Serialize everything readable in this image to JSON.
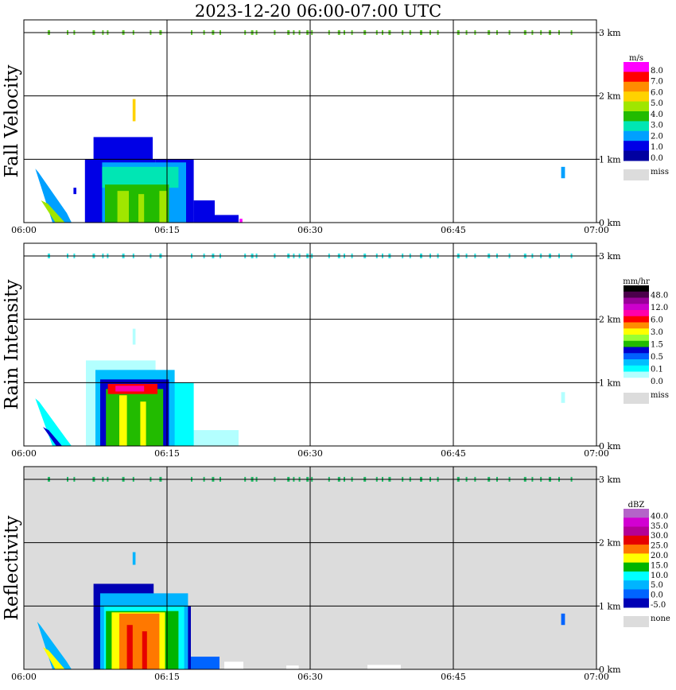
{
  "title": "2023-12-20   06:00-07:00 UTC",
  "time_ticks": [
    "06:00",
    "06:15",
    "06:30",
    "06:45",
    "07:00"
  ],
  "height_ticks": [
    "0 km",
    "1 km",
    "2 km",
    "3 km"
  ],
  "colors": {
    "missing": "#dcdcdc",
    "grid": "#000000",
    "frame": "#000000"
  },
  "chart_data": [
    {
      "type": "heatmap",
      "title": "Fall Velocity",
      "units": "m/s",
      "x_range": [
        "06:00",
        "07:00"
      ],
      "y_range_km": [
        0,
        3.2
      ],
      "background": "#ffffff",
      "legend": {
        "labels": [
          "8.0",
          "7.0",
          "6.0",
          "5.0",
          "4.0",
          "3.0",
          "2.0",
          "1.0",
          "0.0"
        ],
        "colors": [
          "#ff00ff",
          "#ff0000",
          "#ff8c00",
          "#ffd200",
          "#a0e600",
          "#22bb00",
          "#00e6b4",
          "#00a0ff",
          "#0000e6",
          "#0000a0"
        ],
        "miss_label": "miss"
      },
      "echoes": [
        {
          "shape": "rect",
          "t0": 6.4,
          "t1": 13.8,
          "h0": 0.0,
          "h1": 1.0,
          "color": "#0000e6"
        },
        {
          "shape": "rect",
          "t0": 7.3,
          "t1": 13.5,
          "h0": 1.0,
          "h1": 1.35,
          "color": "#0000e6"
        },
        {
          "shape": "rect",
          "t0": 13.8,
          "t1": 17.8,
          "h0": 0.0,
          "h1": 1.0,
          "color": "#0000e6"
        },
        {
          "shape": "rect",
          "t0": 17.8,
          "t1": 20.0,
          "h0": 0.0,
          "h1": 0.35,
          "color": "#0000e6"
        },
        {
          "shape": "rect",
          "t0": 20.0,
          "t1": 22.5,
          "h0": 0.0,
          "h1": 0.12,
          "color": "#0000e6"
        },
        {
          "shape": "rect",
          "t0": 8.2,
          "t1": 17.0,
          "h0": 0.0,
          "h1": 0.95,
          "color": "#00a0ff"
        },
        {
          "shape": "rect",
          "t0": 8.2,
          "t1": 16.2,
          "h0": 0.55,
          "h1": 0.88,
          "color": "#00e6b4"
        },
        {
          "shape": "rect",
          "t0": 8.5,
          "t1": 15.2,
          "h0": 0.0,
          "h1": 0.6,
          "color": "#22bb00"
        },
        {
          "shape": "rect",
          "t0": 9.8,
          "t1": 11.0,
          "h0": 0.0,
          "h1": 0.5,
          "color": "#a0e600"
        },
        {
          "shape": "rect",
          "t0": 12.0,
          "t1": 12.6,
          "h0": 0.0,
          "h1": 0.45,
          "color": "#a0e600"
        },
        {
          "shape": "rect",
          "t0": 14.2,
          "t1": 15.0,
          "h0": 0.0,
          "h1": 0.5,
          "color": "#a0e600"
        },
        {
          "shape": "rect",
          "t0": 22.6,
          "t1": 22.9,
          "h0": 0.0,
          "h1": 0.06,
          "color": "#ff00ff"
        },
        {
          "shape": "poly",
          "points": [
            [
              1.2,
              0.85
            ],
            [
              1.5,
              0.8
            ],
            [
              4.5,
              0.15
            ],
            [
              5.0,
              0.0
            ],
            [
              3.0,
              0.0
            ]
          ],
          "color": "#00a0ff"
        },
        {
          "shape": "poly",
          "points": [
            [
              1.8,
              0.35
            ],
            [
              2.5,
              0.3
            ],
            [
              4.3,
              0.0
            ],
            [
              3.3,
              0.0
            ]
          ],
          "color": "#a0e600"
        },
        {
          "shape": "rect",
          "t0": 11.4,
          "t1": 11.7,
          "h0": 1.6,
          "h1": 1.95,
          "color": "#ffd200"
        },
        {
          "shape": "rect",
          "t0": 56.3,
          "t1": 56.7,
          "h0": 0.7,
          "h1": 0.88,
          "color": "#00a0ff"
        },
        {
          "shape": "rect",
          "t0": 5.2,
          "t1": 5.5,
          "h0": 0.45,
          "h1": 0.55,
          "color": "#0000e6"
        }
      ],
      "clutter_height_km": 3.0,
      "clutter_color": "#66cc33"
    },
    {
      "type": "heatmap",
      "title": "Rain Intensity",
      "units": "mm/hr",
      "x_range": [
        "06:00",
        "07:00"
      ],
      "y_range_km": [
        0,
        3.2
      ],
      "background": "#ffffff",
      "legend": {
        "labels": [
          "48.0",
          "12.0",
          "6.0",
          "3.0",
          "1.5",
          "0.5",
          "0.1",
          "0.0"
        ],
        "colors": [
          "#000000",
          "#4b004b",
          "#990099",
          "#cc00cc",
          "#ff00aa",
          "#ff0000",
          "#ff8c00",
          "#ffff00",
          "#99ff33",
          "#22bb00",
          "#0000cc",
          "#0060ff",
          "#00bfff",
          "#00ffff",
          "#b3ffff",
          "#ffffff"
        ],
        "miss_label": "miss"
      },
      "echoes": [
        {
          "shape": "rect",
          "t0": 6.5,
          "t1": 13.8,
          "h0": 0.0,
          "h1": 1.35,
          "color": "#b3ffff"
        },
        {
          "shape": "rect",
          "t0": 13.8,
          "t1": 22.5,
          "h0": 0.0,
          "h1": 0.25,
          "color": "#b3ffff"
        },
        {
          "shape": "rect",
          "t0": 13.8,
          "t1": 17.8,
          "h0": 0.0,
          "h1": 1.0,
          "color": "#00ffff"
        },
        {
          "shape": "rect",
          "t0": 7.5,
          "t1": 15.8,
          "h0": 0.0,
          "h1": 1.2,
          "color": "#00bfff"
        },
        {
          "shape": "rect",
          "t0": 8.0,
          "t1": 15.2,
          "h0": 0.0,
          "h1": 1.05,
          "color": "#0000cc"
        },
        {
          "shape": "rect",
          "t0": 8.6,
          "t1": 14.6,
          "h0": 0.0,
          "h1": 0.9,
          "color": "#22bb00"
        },
        {
          "shape": "rect",
          "t0": 10.0,
          "t1": 10.8,
          "h0": 0.0,
          "h1": 0.8,
          "color": "#ffff00"
        },
        {
          "shape": "rect",
          "t0": 12.2,
          "t1": 12.8,
          "h0": 0.0,
          "h1": 0.7,
          "color": "#ffff00"
        },
        {
          "shape": "rect",
          "t0": 8.8,
          "t1": 14.0,
          "h0": 0.82,
          "h1": 0.98,
          "color": "#ff0000"
        },
        {
          "shape": "rect",
          "t0": 9.6,
          "t1": 12.6,
          "h0": 0.86,
          "h1": 0.95,
          "color": "#ff00aa"
        },
        {
          "shape": "poly",
          "points": [
            [
              1.2,
              0.75
            ],
            [
              1.6,
              0.7
            ],
            [
              4.5,
              0.1
            ],
            [
              5.0,
              0.0
            ],
            [
              3.0,
              0.0
            ]
          ],
          "color": "#00ffff"
        },
        {
          "shape": "poly",
          "points": [
            [
              2.0,
              0.3
            ],
            [
              2.6,
              0.25
            ],
            [
              4.0,
              0.0
            ],
            [
              3.4,
              0.0
            ]
          ],
          "color": "#0000cc"
        },
        {
          "shape": "rect",
          "t0": 11.4,
          "t1": 11.7,
          "h0": 1.6,
          "h1": 1.85,
          "color": "#b3ffff"
        },
        {
          "shape": "rect",
          "t0": 56.3,
          "t1": 56.7,
          "h0": 0.68,
          "h1": 0.85,
          "color": "#b3ffff"
        }
      ],
      "clutter_height_km": 3.0,
      "clutter_color": "#33e6e6"
    },
    {
      "type": "heatmap",
      "title": "Reflectivity",
      "units": "dBZ",
      "x_range": [
        "06:00",
        "07:00"
      ],
      "y_range_km": [
        0,
        3.2
      ],
      "background": "#dcdcdc",
      "legend": {
        "labels": [
          "40.0",
          "35.0",
          "30.0",
          "25.0",
          "20.0",
          "15.0",
          "10.0",
          "5.0",
          "0.0",
          "-5.0"
        ],
        "colors": [
          "#b464c8",
          "#d200d2",
          "#b40096",
          "#e60000",
          "#ff7800",
          "#ffff00",
          "#00b400",
          "#00ffff",
          "#00b4ff",
          "#0064ff",
          "#0000b4"
        ],
        "miss_label": "none"
      },
      "echoes": [
        {
          "shape": "rect",
          "t0": 21.0,
          "t1": 23.0,
          "h0": 0.0,
          "h1": 0.12,
          "color": "#ffffff"
        },
        {
          "shape": "rect",
          "t0": 27.5,
          "t1": 28.8,
          "h0": 0.0,
          "h1": 0.06,
          "color": "#ffffff"
        },
        {
          "shape": "rect",
          "t0": 36.0,
          "t1": 39.5,
          "h0": 0.0,
          "h1": 0.07,
          "color": "#ffffff"
        },
        {
          "shape": "rect",
          "t0": 7.3,
          "t1": 13.6,
          "h0": 0.0,
          "h1": 1.35,
          "color": "#0000b4"
        },
        {
          "shape": "rect",
          "t0": 13.6,
          "t1": 17.5,
          "h0": 0.0,
          "h1": 1.0,
          "color": "#0000b4"
        },
        {
          "shape": "rect",
          "t0": 17.5,
          "t1": 20.5,
          "h0": 0.0,
          "h1": 0.2,
          "color": "#0064ff"
        },
        {
          "shape": "rect",
          "t0": 8.0,
          "t1": 17.2,
          "h0": 0.0,
          "h1": 1.2,
          "color": "#00b4ff"
        },
        {
          "shape": "rect",
          "t0": 8.4,
          "t1": 16.8,
          "h0": 0.0,
          "h1": 1.0,
          "color": "#00ffff"
        },
        {
          "shape": "rect",
          "t0": 8.6,
          "t1": 16.2,
          "h0": 0.0,
          "h1": 0.92,
          "color": "#00b400"
        },
        {
          "shape": "rect",
          "t0": 9.2,
          "t1": 14.8,
          "h0": 0.0,
          "h1": 0.9,
          "color": "#ffff00"
        },
        {
          "shape": "rect",
          "t0": 10.0,
          "t1": 14.2,
          "h0": 0.0,
          "h1": 0.88,
          "color": "#ff7800"
        },
        {
          "shape": "rect",
          "t0": 10.8,
          "t1": 11.4,
          "h0": 0.0,
          "h1": 0.7,
          "color": "#e60000"
        },
        {
          "shape": "rect",
          "t0": 12.4,
          "t1": 12.9,
          "h0": 0.0,
          "h1": 0.6,
          "color": "#e60000"
        },
        {
          "shape": "poly",
          "points": [
            [
              1.4,
              0.75
            ],
            [
              1.7,
              0.7
            ],
            [
              4.5,
              0.12
            ],
            [
              5.0,
              0.0
            ],
            [
              3.0,
              0.0
            ]
          ],
          "color": "#00b4ff"
        },
        {
          "shape": "poly",
          "points": [
            [
              2.0,
              0.35
            ],
            [
              2.6,
              0.3
            ],
            [
              4.3,
              0.0
            ],
            [
              3.3,
              0.0
            ]
          ],
          "color": "#ffff00"
        },
        {
          "shape": "rect",
          "t0": 11.4,
          "t1": 11.7,
          "h0": 1.65,
          "h1": 1.85,
          "color": "#00b4ff"
        },
        {
          "shape": "rect",
          "t0": 56.3,
          "t1": 56.7,
          "h0": 0.7,
          "h1": 0.88,
          "color": "#0064ff"
        }
      ],
      "clutter_height_km": 3.0,
      "clutter_color": "#22bb66"
    }
  ]
}
